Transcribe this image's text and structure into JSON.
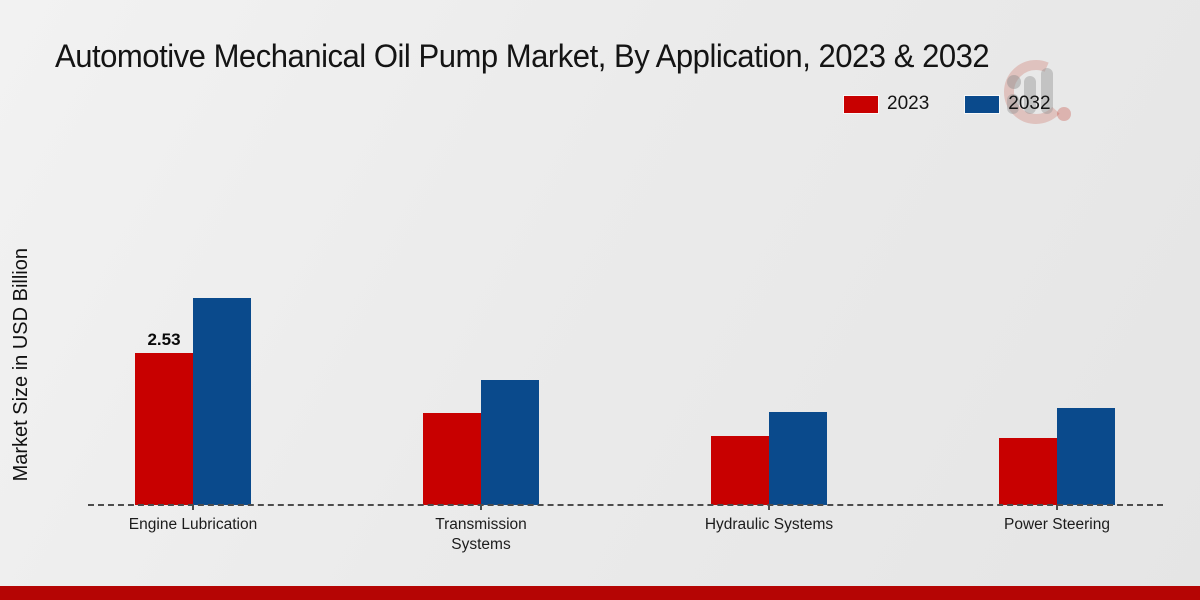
{
  "title": "Automotive Mechanical Oil Pump Market, By Application, 2023 & 2032",
  "ylabel": "Market Size in USD Billion",
  "legend": {
    "items": [
      {
        "label": "2023",
        "color": "#c80000"
      },
      {
        "label": "2032",
        "color": "#0a4a8c"
      }
    ]
  },
  "chart_data": {
    "type": "bar",
    "title": "Automotive Mechanical Oil Pump Market, By Application, 2023 & 2032",
    "xlabel": "",
    "ylabel": "Market Size in USD Billion",
    "categories": [
      "Engine Lubrication",
      "Transmission Systems",
      "Hydraulic Systems",
      "Power Steering"
    ],
    "series": [
      {
        "name": "2023",
        "color": "#c80000",
        "values": [
          2.53,
          1.53,
          1.15,
          1.11
        ]
      },
      {
        "name": "2032",
        "color": "#0a4a8c",
        "values": [
          3.45,
          2.08,
          1.55,
          1.61
        ]
      }
    ],
    "data_labels": [
      {
        "series_index": 0,
        "category_index": 0,
        "text": "2.53"
      }
    ],
    "ylim": [
      0,
      3.8
    ],
    "grid": false,
    "legend_position": "top-right",
    "baseline_style": "dashed"
  },
  "colors": {
    "series_2023": "#c80000",
    "series_2032": "#0a4a8c",
    "footer_bar": "#b50504",
    "axis_dash": "#4d4d4d",
    "background": "#ececec"
  }
}
